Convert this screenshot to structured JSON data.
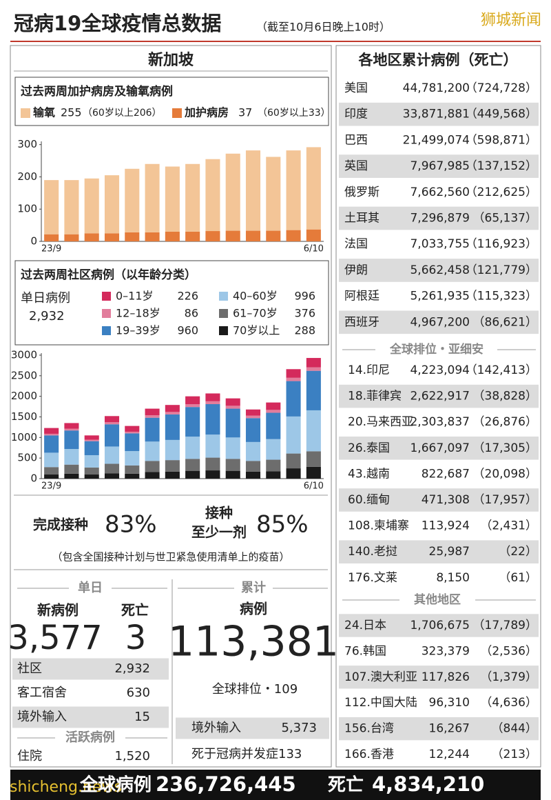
{
  "header": {
    "title": "冠病19全球疫情总数据",
    "subtitle": "（截至10月6日晚上10时）",
    "brand": "狮城新闻"
  },
  "chart_data": [
    {
      "type": "bar",
      "stacked": true,
      "title": "过去两周加护病房及输氧病例",
      "categories": [
        "23/9",
        null,
        null,
        null,
        null,
        null,
        null,
        null,
        null,
        null,
        null,
        null,
        null,
        "6/10"
      ],
      "series": [
        {
          "name": "输氧",
          "color": "#f3c597",
          "values": [
            168,
            168,
            170,
            180,
            197,
            212,
            202,
            210,
            223,
            239,
            249,
            229,
            247,
            255
          ]
        },
        {
          "name": "加护病房",
          "color": "#e57b3a",
          "values": [
            22,
            22,
            25,
            25,
            28,
            28,
            30,
            30,
            32,
            33,
            33,
            33,
            35,
            37
          ]
        }
      ],
      "legend_notes": [
        "（60岁以上206）",
        "（60岁以上33）"
      ],
      "ylim": [
        0,
        310
      ],
      "yticks": [
        0,
        100,
        200,
        300
      ],
      "grid": false
    },
    {
      "type": "bar",
      "stacked": true,
      "title": "过去两周社区病例（以年龄分类）",
      "summary_label": "单日病例",
      "summary_value": "2,932",
      "categories": [
        "23/9",
        null,
        null,
        null,
        null,
        null,
        null,
        null,
        null,
        null,
        null,
        null,
        null,
        "6/10"
      ],
      "series": [
        {
          "name": "0–11岁",
          "color": "#d42a5c",
          "values": [
            140,
            135,
            105,
            150,
            140,
            160,
            170,
            190,
            190,
            180,
            150,
            180,
            210,
            226
          ]
        },
        {
          "name": "12–18岁",
          "color": "#e27d9c",
          "values": [
            40,
            45,
            35,
            50,
            40,
            60,
            60,
            70,
            70,
            70,
            60,
            70,
            80,
            86
          ]
        },
        {
          "name": "19–39岁",
          "color": "#3b80c2",
          "values": [
            420,
            450,
            340,
            540,
            430,
            580,
            620,
            720,
            740,
            700,
            580,
            640,
            860,
            960
          ]
        },
        {
          "name": "40–60岁",
          "color": "#9dc7e7",
          "values": [
            350,
            380,
            300,
            420,
            350,
            470,
            490,
            540,
            560,
            520,
            460,
            500,
            900,
            996
          ]
        },
        {
          "name": "61–70岁",
          "color": "#6d6d6d",
          "values": [
            180,
            220,
            170,
            230,
            200,
            270,
            280,
            290,
            310,
            290,
            260,
            280,
            360,
            376
          ]
        },
        {
          "name": "70岁以上",
          "color": "#1a1a1a",
          "values": [
            100,
            120,
            100,
            130,
            120,
            160,
            170,
            190,
            200,
            190,
            170,
            180,
            250,
            288
          ]
        }
      ],
      "ylim": [
        0,
        3050
      ],
      "yticks": [
        0,
        500,
        1000,
        1500,
        2000,
        2500,
        3000
      ],
      "grid": false
    }
  ],
  "singapore": {
    "heading": "新加坡",
    "vaccination": {
      "completed_label": "完成接种",
      "completed": "83%",
      "atleast_label_1": "接种",
      "atleast_label_2": "至少一剂",
      "atleast": "85%",
      "note": "（包含全国接种计划与世卫紧急使用清单上的疫苗）"
    },
    "daily": {
      "heading": "单日",
      "new_label": "新病例",
      "new": "3,577",
      "deaths_label": "死亡",
      "deaths": "3",
      "rows": [
        [
          "社区",
          "2,932"
        ],
        [
          "客工宿舍",
          "630"
        ],
        [
          "境外输入",
          "15"
        ]
      ],
      "active_heading": "活跃病例",
      "active_rows": [
        [
          "住院",
          "1,520"
        ]
      ]
    },
    "cumulative": {
      "heading": "累计",
      "label": "病例",
      "value": "113,381",
      "rank": "全球排位・109",
      "rows": [
        [
          "境外输入",
          "5,373"
        ]
      ],
      "deaths_note": "死于冠病并发症133"
    }
  },
  "world": {
    "heading": "各地区累计病例（死亡）",
    "top": [
      [
        "美国",
        "44,781,200",
        "（724,728）"
      ],
      [
        "印度",
        "33,871,881",
        "（449,568）"
      ],
      [
        "巴西",
        "21,499,074",
        "（598,871）"
      ],
      [
        "英国",
        "7,967,985",
        "（137,152）"
      ],
      [
        "俄罗斯",
        "7,662,560",
        "（212,625）"
      ],
      [
        "土耳其",
        "7,296,879",
        "（65,137）"
      ],
      [
        "法国",
        "7,033,755",
        "（116,923）"
      ],
      [
        "伊朗",
        "5,662,458",
        "（121,779）"
      ],
      [
        "阿根廷",
        "5,261,935",
        "（115,323）"
      ],
      [
        "西班牙",
        "4,967,200",
        "（86,621）"
      ]
    ],
    "asean_heading": "全球排位・亚细安",
    "asean": [
      [
        "14.印尼",
        "4,223,094",
        "（142,413）"
      ],
      [
        "18.菲律宾",
        "2,622,917",
        "（38,828）"
      ],
      [
        "20.马来西亚",
        "2,303,837",
        "（26,876）"
      ],
      [
        "26.泰国",
        "1,667,097",
        "（17,305）"
      ],
      [
        "43.越南",
        "822,687",
        "（20,098）"
      ],
      [
        "60.缅甸",
        "471,308",
        "（17,957）"
      ],
      [
        "108.柬埔寨",
        "113,924",
        "（2,431）"
      ],
      [
        "140.老挝",
        "25,987",
        "（22）"
      ],
      [
        "176.文莱",
        "8,150",
        "（61）"
      ]
    ],
    "other_heading": "其他地区",
    "other": [
      [
        "24.日本",
        "1,706,675",
        "（17,789）"
      ],
      [
        "76.韩国",
        "323,379",
        "（2,536）"
      ],
      [
        "107.澳大利亚",
        "117,826",
        "（1,379）"
      ],
      [
        "112.中国大陆",
        "96,310",
        "（4,636）"
      ],
      [
        "156.台湾",
        "16,267",
        "（844）"
      ],
      [
        "166.香港",
        "12,244",
        "（213）"
      ]
    ]
  },
  "footer": {
    "watermark": "shicheng.news",
    "cases_label": "全球病例",
    "cases": "236,726,445",
    "deaths_label": "死亡",
    "deaths": "4,834,210"
  }
}
